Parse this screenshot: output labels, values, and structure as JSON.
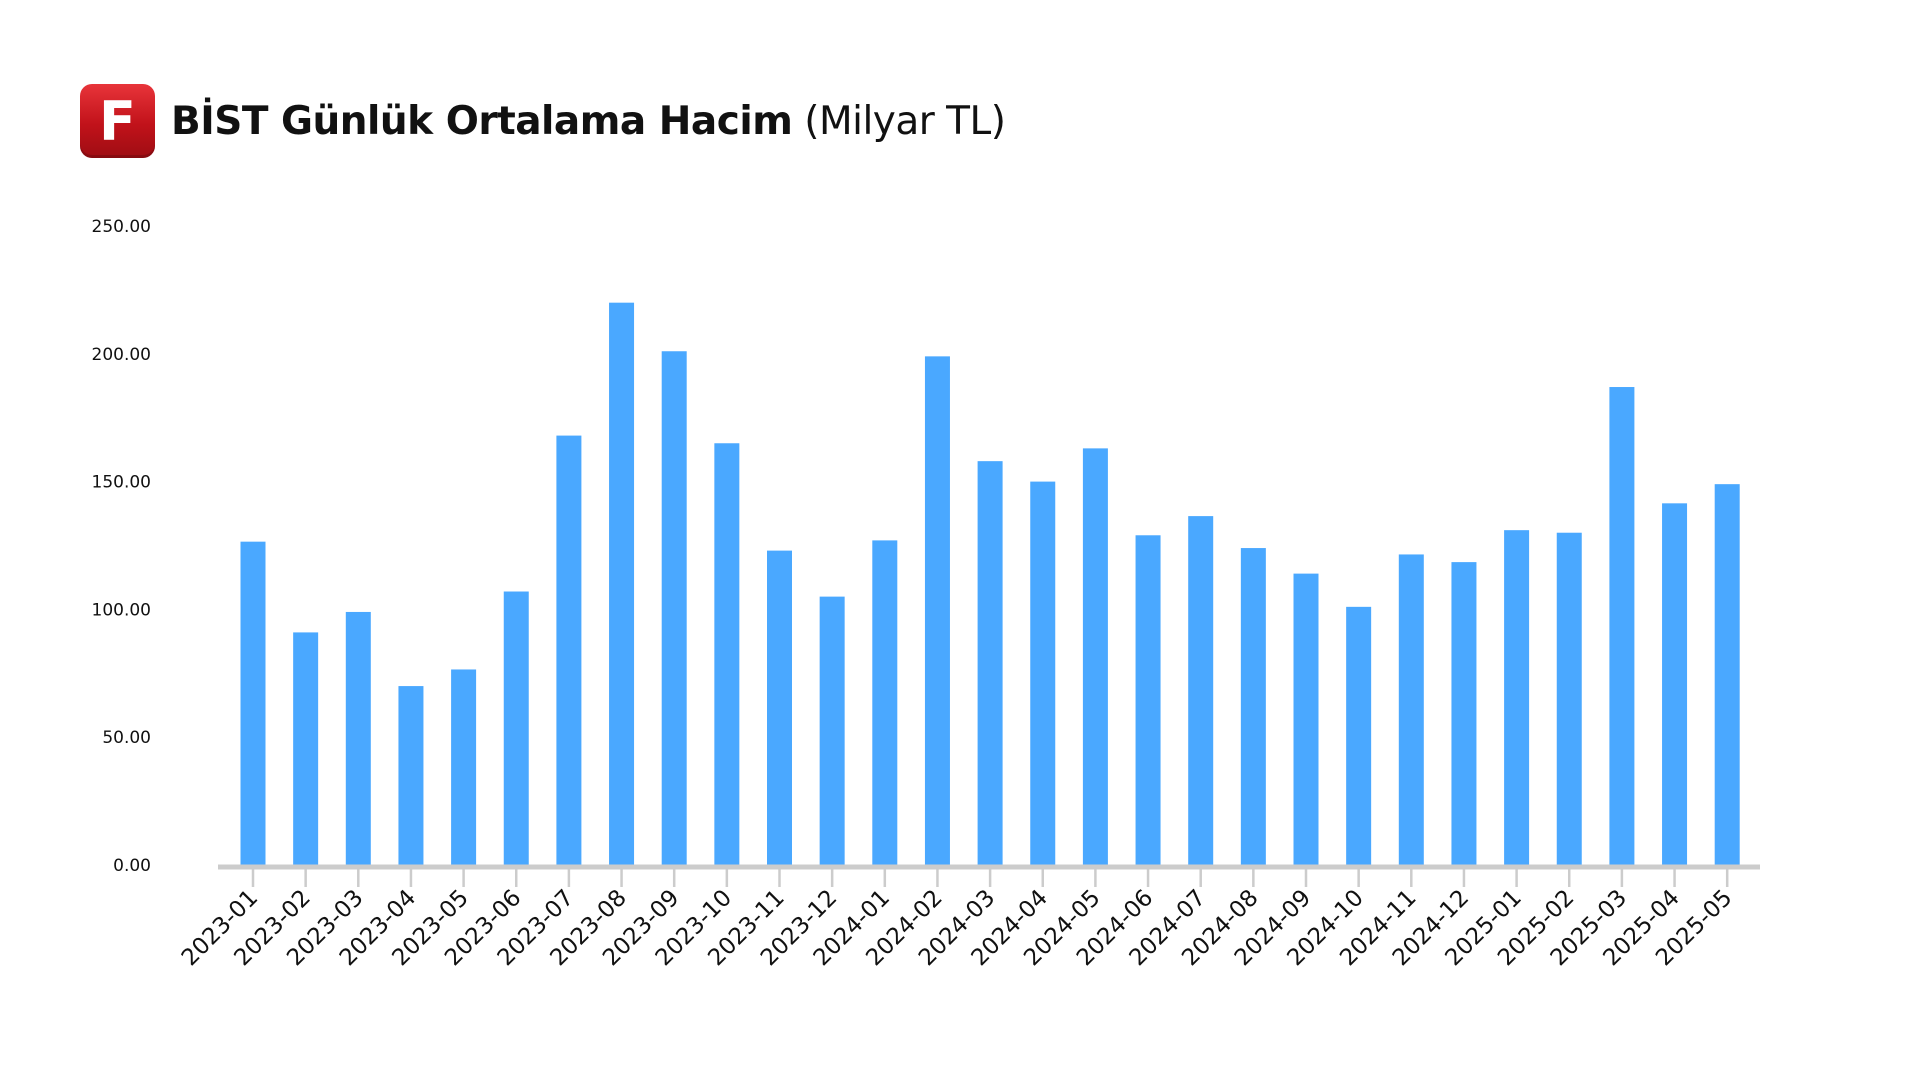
{
  "header": {
    "logo_letter": "F",
    "title_main": "BİST Günlük Ortalama Hacim",
    "title_unit": " (Milyar TL)"
  },
  "chart_data": {
    "type": "bar",
    "title": "BİST Günlük Ortalama Hacim (Milyar TL)",
    "xlabel": "",
    "ylabel": "",
    "ylim": [
      0,
      250
    ],
    "yticks": [
      "0.00",
      "50.00",
      "100.00",
      "150.00",
      "200.00",
      "250.00"
    ],
    "grid": false,
    "legend": "none",
    "bar_color": "#4aa8ff",
    "axis_color": "#cccccc",
    "categories": [
      "2023-01",
      "2023-02",
      "2023-03",
      "2023-04",
      "2023-05",
      "2023-06",
      "2023-07",
      "2023-08",
      "2023-09",
      "2023-10",
      "2023-11",
      "2023-12",
      "2024-01",
      "2024-02",
      "2024-03",
      "2024-04",
      "2024-05",
      "2024-06",
      "2024-07",
      "2024-08",
      "2024-09",
      "2024-10",
      "2024-11",
      "2024-12",
      "2025-01",
      "2025-02",
      "2025-03",
      "2025-04",
      "2025-05"
    ],
    "values": [
      126.5,
      91,
      99,
      70,
      76.5,
      107,
      168,
      220,
      201,
      165,
      123,
      105,
      127,
      199,
      158,
      150,
      163,
      129,
      136.5,
      124,
      114,
      101,
      121.5,
      118.5,
      131,
      130,
      187,
      141.5,
      149
    ]
  }
}
